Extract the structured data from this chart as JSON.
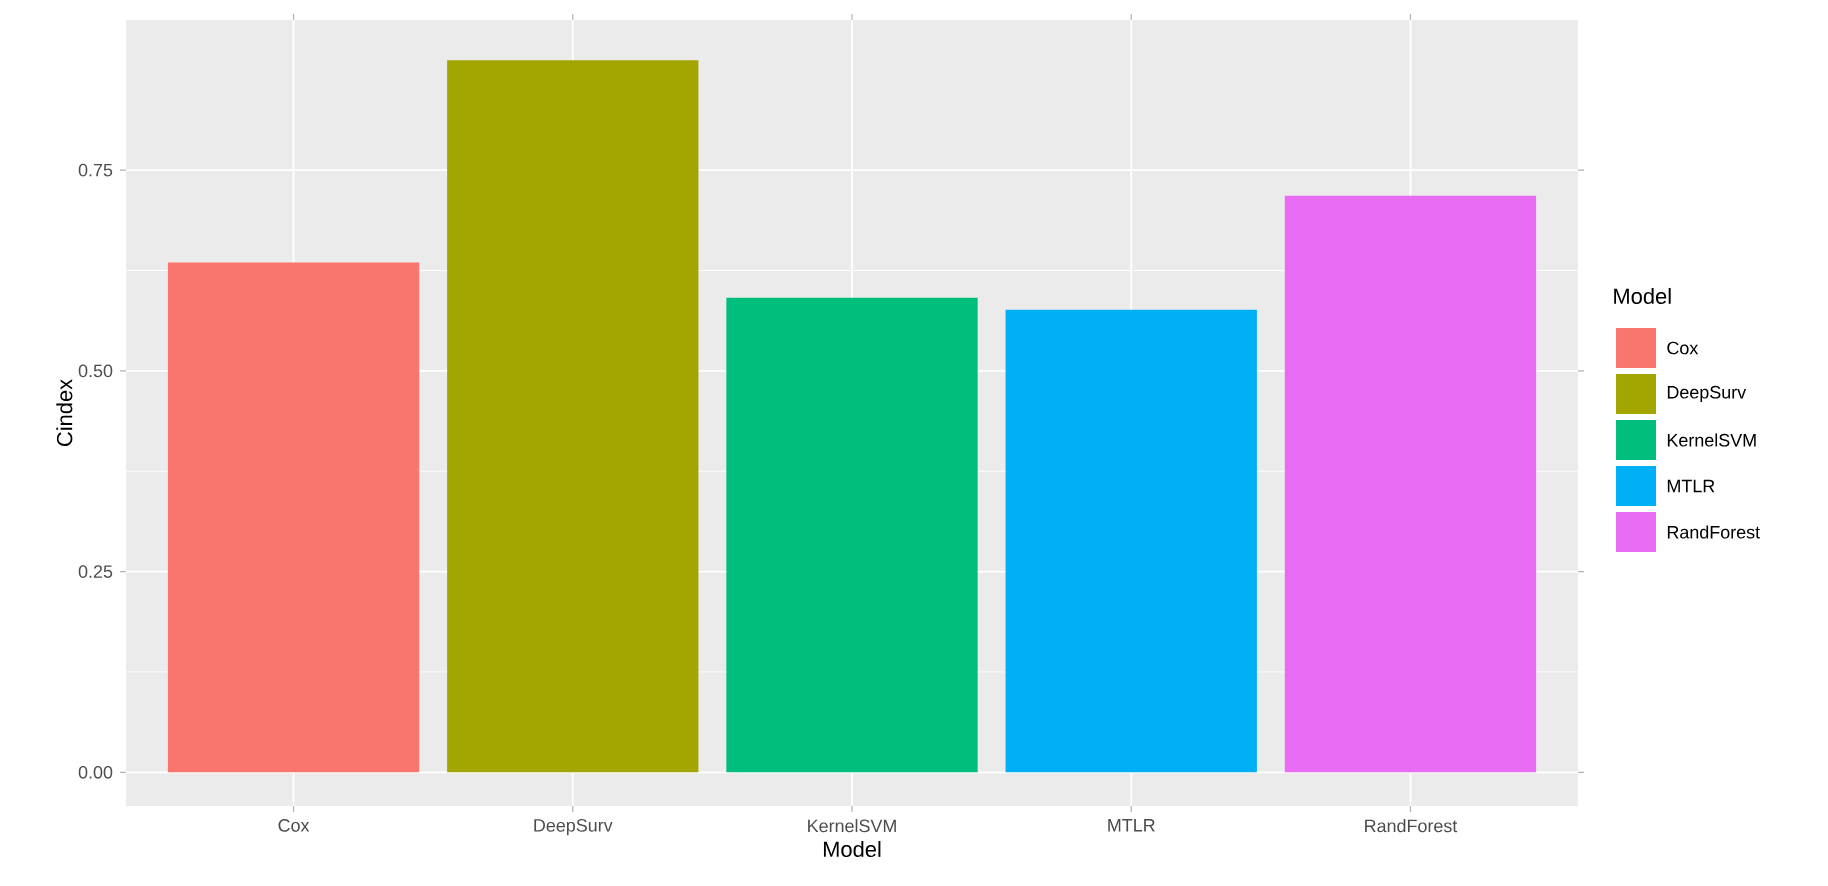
{
  "chart_data": {
    "type": "bar",
    "xlabel": "Model",
    "ylabel": "Cindex",
    "legend_title": "Model",
    "categories": [
      "Cox",
      "DeepSurv",
      "KernelSVM",
      "MTLR",
      "RandForest"
    ],
    "series": [
      {
        "name": "Cox",
        "color": "#f8766d",
        "values": [
          0.635,
          null,
          null,
          null,
          null
        ]
      },
      {
        "name": "DeepSurv",
        "color": "#a3a500",
        "values": [
          null,
          0.887,
          null,
          null,
          null
        ]
      },
      {
        "name": "KernelSVM",
        "color": "#00bf7d",
        "values": [
          null,
          null,
          0.591,
          null,
          null
        ]
      },
      {
        "name": "MTLR",
        "color": "#00b0f6",
        "values": [
          null,
          null,
          null,
          0.576,
          null
        ]
      },
      {
        "name": "RandForest",
        "color": "#e76bf3",
        "values": [
          null,
          null,
          null,
          null,
          0.718
        ]
      }
    ],
    "ylim": [
      -0.042,
      0.937
    ],
    "yticks": [
      {
        "value": 0,
        "label": "0.00"
      },
      {
        "value": 0.25,
        "label": "0.25"
      },
      {
        "value": 0.5,
        "label": "0.50"
      },
      {
        "value": 0.75,
        "label": "0.75"
      }
    ],
    "grid": true,
    "legend": "right"
  }
}
